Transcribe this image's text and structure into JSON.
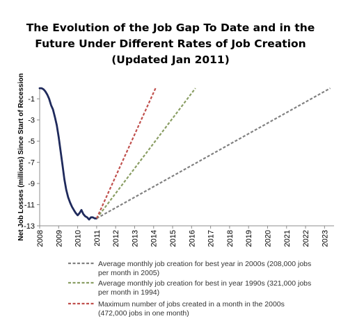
{
  "chart_data": {
    "type": "line",
    "title_lines": [
      "The Evolution of the Job Gap To Date and in the",
      "Future Under Different Rates of Job Creation",
      "(Updated Jan 2011)"
    ],
    "ylabel": "Net Job Losses (millions) Since Start of Recession",
    "xlabel": "",
    "xlim": [
      2008,
      2023.5
    ],
    "ylim": [
      -13,
      0
    ],
    "x_ticks": [
      "2008",
      "2009",
      "2010",
      "2011",
      "2012",
      "2013",
      "2014",
      "2015",
      "2016",
      "2017",
      "2018",
      "2019",
      "2020",
      "2021",
      "2022",
      "2023"
    ],
    "y_ticks": [
      "-1",
      "-3",
      "-5",
      "-7",
      "-9",
      "-11",
      "-13"
    ],
    "y_tick_values": [
      -1,
      -3,
      -5,
      -7,
      -9,
      -11,
      -13
    ],
    "grid": false,
    "legend_position": "bottom",
    "series": [
      {
        "style": "solid",
        "color": "#1f2a5c",
        "x": [
          2008.0,
          2008.1,
          2008.2,
          2008.3,
          2008.4,
          2008.5,
          2008.6,
          2008.7,
          2008.8,
          2008.9,
          2009.0,
          2009.1,
          2009.2,
          2009.3,
          2009.4,
          2009.5,
          2009.6,
          2009.7,
          2009.8,
          2009.9,
          2010.0,
          2010.1,
          2010.2,
          2010.3,
          2010.4,
          2010.5,
          2010.6,
          2010.7,
          2010.8,
          2010.9,
          2011.0
        ],
        "y": [
          0,
          0,
          -0.1,
          -0.3,
          -0.6,
          -1.0,
          -1.6,
          -2.0,
          -2.7,
          -3.5,
          -4.6,
          -5.9,
          -7.2,
          -8.6,
          -9.6,
          -10.3,
          -10.8,
          -11.2,
          -11.5,
          -11.8,
          -12.0,
          -11.8,
          -11.5,
          -11.9,
          -12.1,
          -12.2,
          -12.4,
          -12.2,
          -12.2,
          -12.3,
          -12.3
        ]
      },
      {
        "name": "Average monthly job creation for best year in 2000s (208,000 jobs per month in 2005)",
        "style": "dashed",
        "color": "#808080",
        "x": [
          2011.0,
          2023.3
        ],
        "y": [
          -12.3,
          0
        ]
      },
      {
        "name": "Average monthly job creation for best in year 1990s (321,000 jobs per month in 1994)",
        "style": "dashed",
        "color": "#8a9e64",
        "x": [
          2011.0,
          2016.2
        ],
        "y": [
          -12.3,
          0
        ]
      },
      {
        "name": "Maximum number of jobs created in a month in the 2000s (472,000 jobs in one month)",
        "style": "dashed",
        "color": "#c0504d",
        "x": [
          2011.0,
          2014.1
        ],
        "y": [
          -12.3,
          0
        ]
      }
    ],
    "legend": [
      {
        "series_index": 1,
        "lines": [
          "Average monthly job creation for best year in 2000s (208,000 jobs",
          "per month in 2005)"
        ]
      },
      {
        "series_index": 2,
        "lines": [
          "Average monthly job creation for best in year 1990s (321,000 jobs",
          "per month in 1994)"
        ]
      },
      {
        "series_index": 3,
        "lines": [
          "Maximum number of jobs created in a month in the 2000s",
          "(472,000 jobs in one month)"
        ]
      }
    ]
  }
}
